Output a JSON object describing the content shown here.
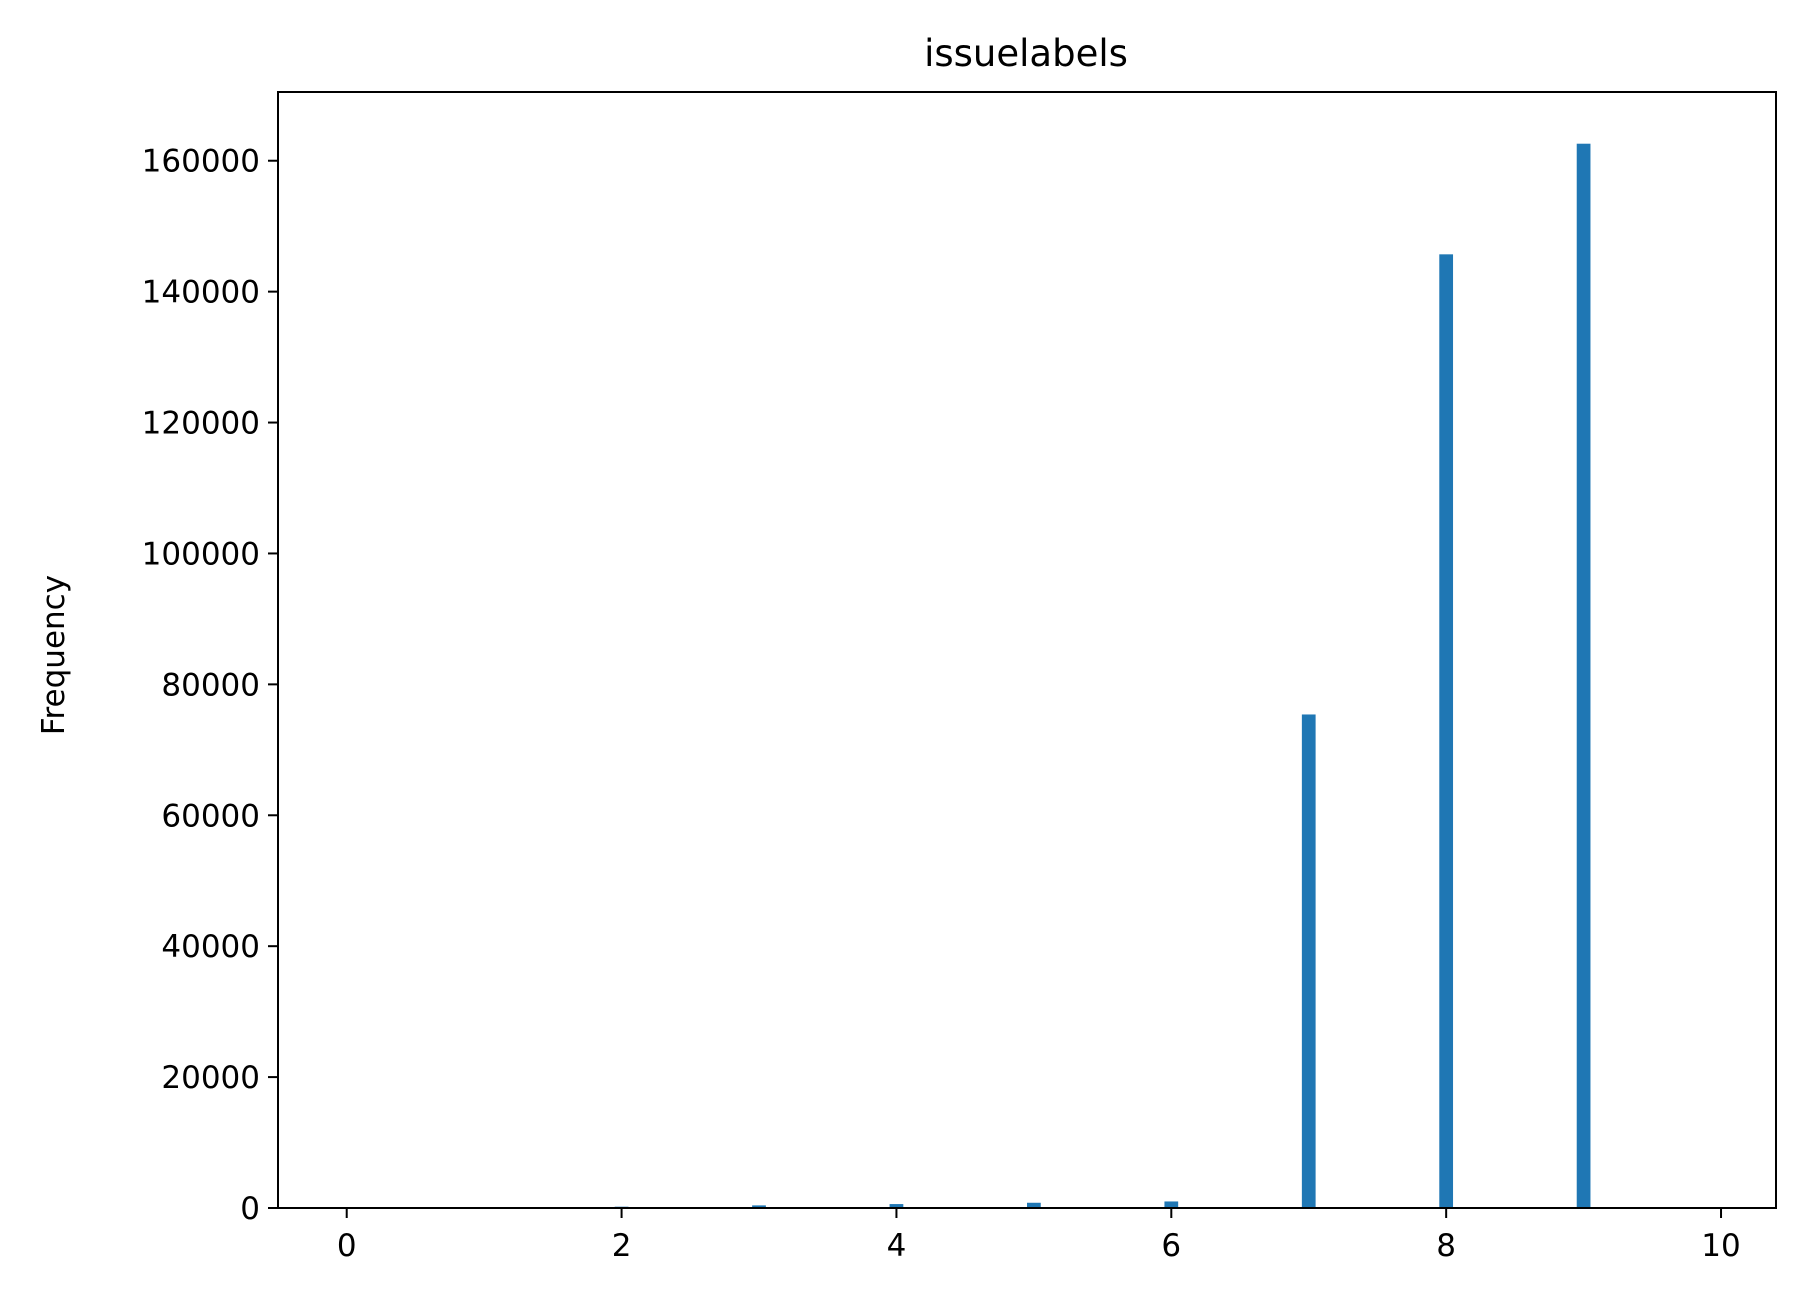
{
  "chart_data": {
    "type": "bar",
    "title": "issuelabels",
    "xlabel": "",
    "ylabel": "Frequency",
    "xlim": [
      -0.5,
      10.4
    ],
    "ylim": [
      0,
      170500
    ],
    "xticks": [
      "0",
      "2",
      "4",
      "6",
      "8",
      "10"
    ],
    "yticks": [
      "0",
      "20000",
      "40000",
      "60000",
      "80000",
      "100000",
      "120000",
      "140000",
      "160000"
    ],
    "bar_color": "#1f77b4",
    "grid": false,
    "legend": "none",
    "bar_width": 0.1,
    "x": [
      2,
      3,
      4,
      5,
      6,
      7,
      8,
      9
    ],
    "values": [
      200,
      400,
      600,
      800,
      1000,
      75400,
      145700,
      162600
    ]
  }
}
